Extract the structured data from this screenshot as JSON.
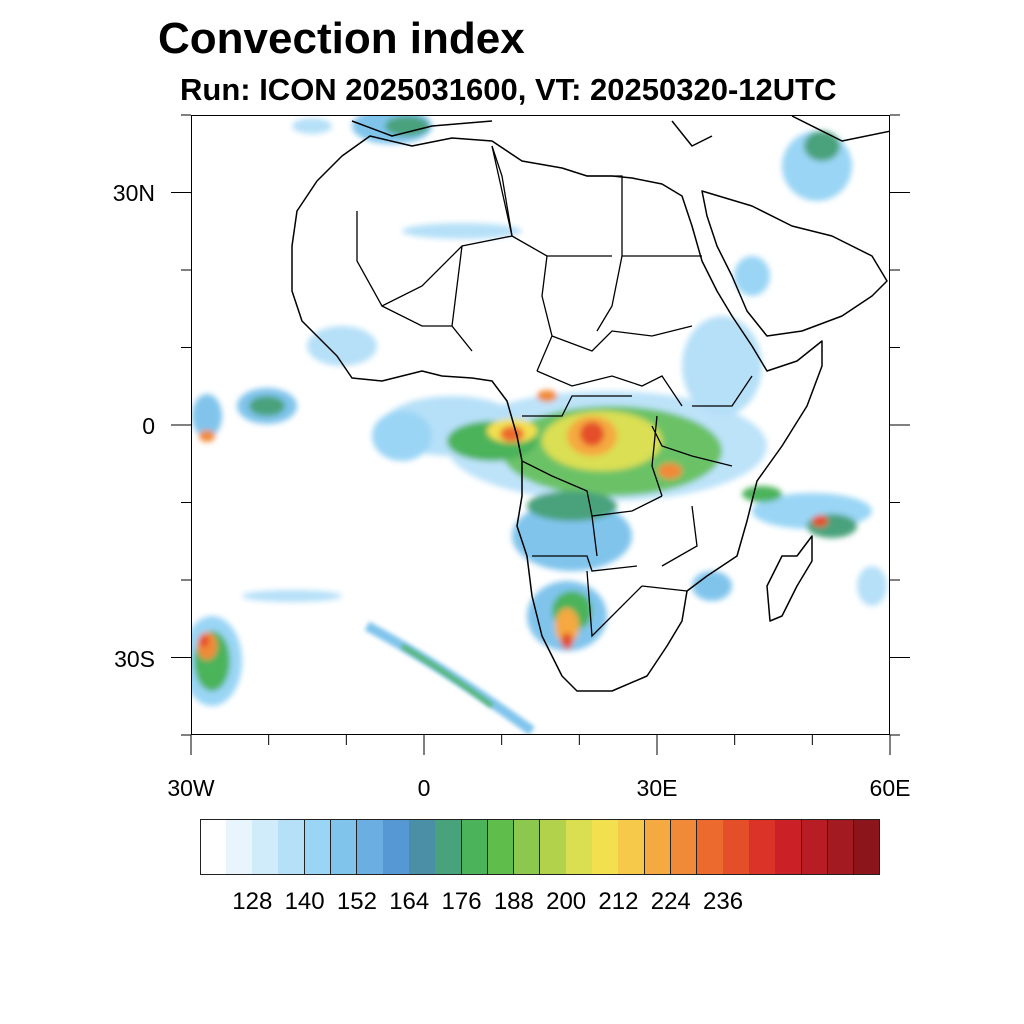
{
  "title": "Convection index",
  "subtitle": "Run: ICON 2025031600,  VT: 20250320-12UTC",
  "map": {
    "lon_range": [
      -30,
      60
    ],
    "lat_range": [
      -40,
      40
    ],
    "lat_ticks": [
      {
        "value": 30,
        "label": "30N"
      },
      {
        "value": 0,
        "label": "0"
      },
      {
        "value": -30,
        "label": "30S"
      }
    ],
    "lon_ticks": [
      {
        "value": -30,
        "label": "30W"
      },
      {
        "value": 0,
        "label": "0"
      },
      {
        "value": 30,
        "label": "30E"
      },
      {
        "value": 60,
        "label": "60E"
      }
    ]
  },
  "colorbar": {
    "colors": [
      "#ffffff",
      "#e9f5fd",
      "#d0ebfa",
      "#b6e0f8",
      "#9ad5f5",
      "#80c4ec",
      "#6aaee2",
      "#5598d3",
      "#4a8fa6",
      "#48a27c",
      "#4bb35a",
      "#5fbd4c",
      "#8cc84e",
      "#b3d24c",
      "#dadf52",
      "#f2e04f",
      "#f7c94a",
      "#f5a941",
      "#f18a38",
      "#ec6a2e",
      "#e44f2a",
      "#db3328",
      "#cc2027",
      "#b81c25",
      "#a41a21",
      "#8c151b"
    ],
    "labels": [
      "128",
      "140",
      "152",
      "164",
      "176",
      "188",
      "200",
      "212",
      "224",
      "236"
    ],
    "label_every": 2,
    "first_label_box": 1
  }
}
